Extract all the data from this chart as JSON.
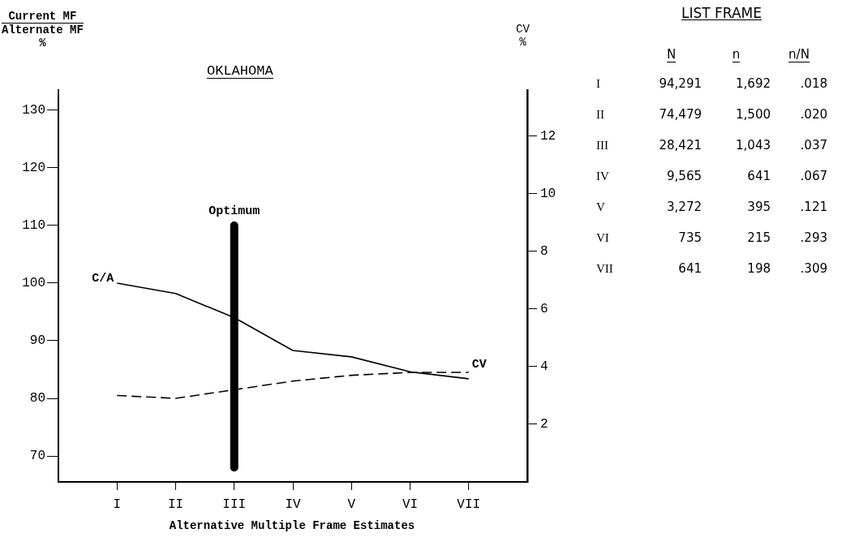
{
  "chart_data": [
    {
      "type": "line",
      "title": "OKLAHOMA",
      "xlabel": "Alternative Multiple Frame Estimates",
      "ylabel": "Current MF\nAlternate MF\n%",
      "y2label": "CV\n%",
      "categories": [
        "I",
        "II",
        "III",
        "IV",
        "V",
        "VI",
        "VII"
      ],
      "series": [
        {
          "name": "C/A",
          "color": "#000000",
          "values": [
            100,
            98.2,
            94,
            88.3,
            87.2,
            84.6,
            83.4
          ],
          "line_style": "solid"
        },
        {
          "name": "CV",
          "color": "#000000",
          "values": [
            3.0,
            2.9,
            3.2,
            3.5,
            3.7,
            3.8,
            3.8
          ],
          "axis": "y2",
          "line_style": "dashed"
        },
        {
          "name": "Optimum",
          "color": "#000000",
          "x": [
            "III",
            "III"
          ],
          "values": [
            68,
            110
          ],
          "line_style": "solid"
        }
      ],
      "ylim": [
        65.5,
        133.5
      ],
      "yticks": [
        70,
        80,
        90,
        100,
        110,
        120,
        130
      ],
      "y2lim": [
        0,
        13.6
      ],
      "y2ticks": [
        2,
        4,
        6,
        8,
        10,
        12
      ],
      "grid": false,
      "legend": false,
      "marker": "none"
    },
    {
      "type": "other",
      "title": "LIST FRAME",
      "categories": [
        "I",
        "II",
        "III",
        "IV",
        "V",
        "VI",
        "VII"
      ],
      "series": [
        {
          "name": "N",
          "values": [
            94291,
            74479,
            28421,
            9565,
            3272,
            735,
            641
          ],
          "value_labels": [
            "94,291",
            "74,479",
            "28,421",
            "9,565",
            "3,272",
            "735",
            "641"
          ]
        },
        {
          "name": "n",
          "values": [
            1692,
            1500,
            1043,
            641,
            395,
            215,
            198
          ],
          "value_labels": [
            "1,692",
            "1,500",
            "1,043",
            "641",
            "395",
            "215",
            "198"
          ]
        },
        {
          "name": "n/N",
          "values": [
            0.018,
            0.02,
            0.037,
            0.067,
            0.121,
            0.293,
            0.309
          ],
          "value_labels": [
            ".018",
            ".020",
            ".037",
            ".067",
            ".121",
            ".293",
            ".309"
          ]
        }
      ]
    }
  ]
}
